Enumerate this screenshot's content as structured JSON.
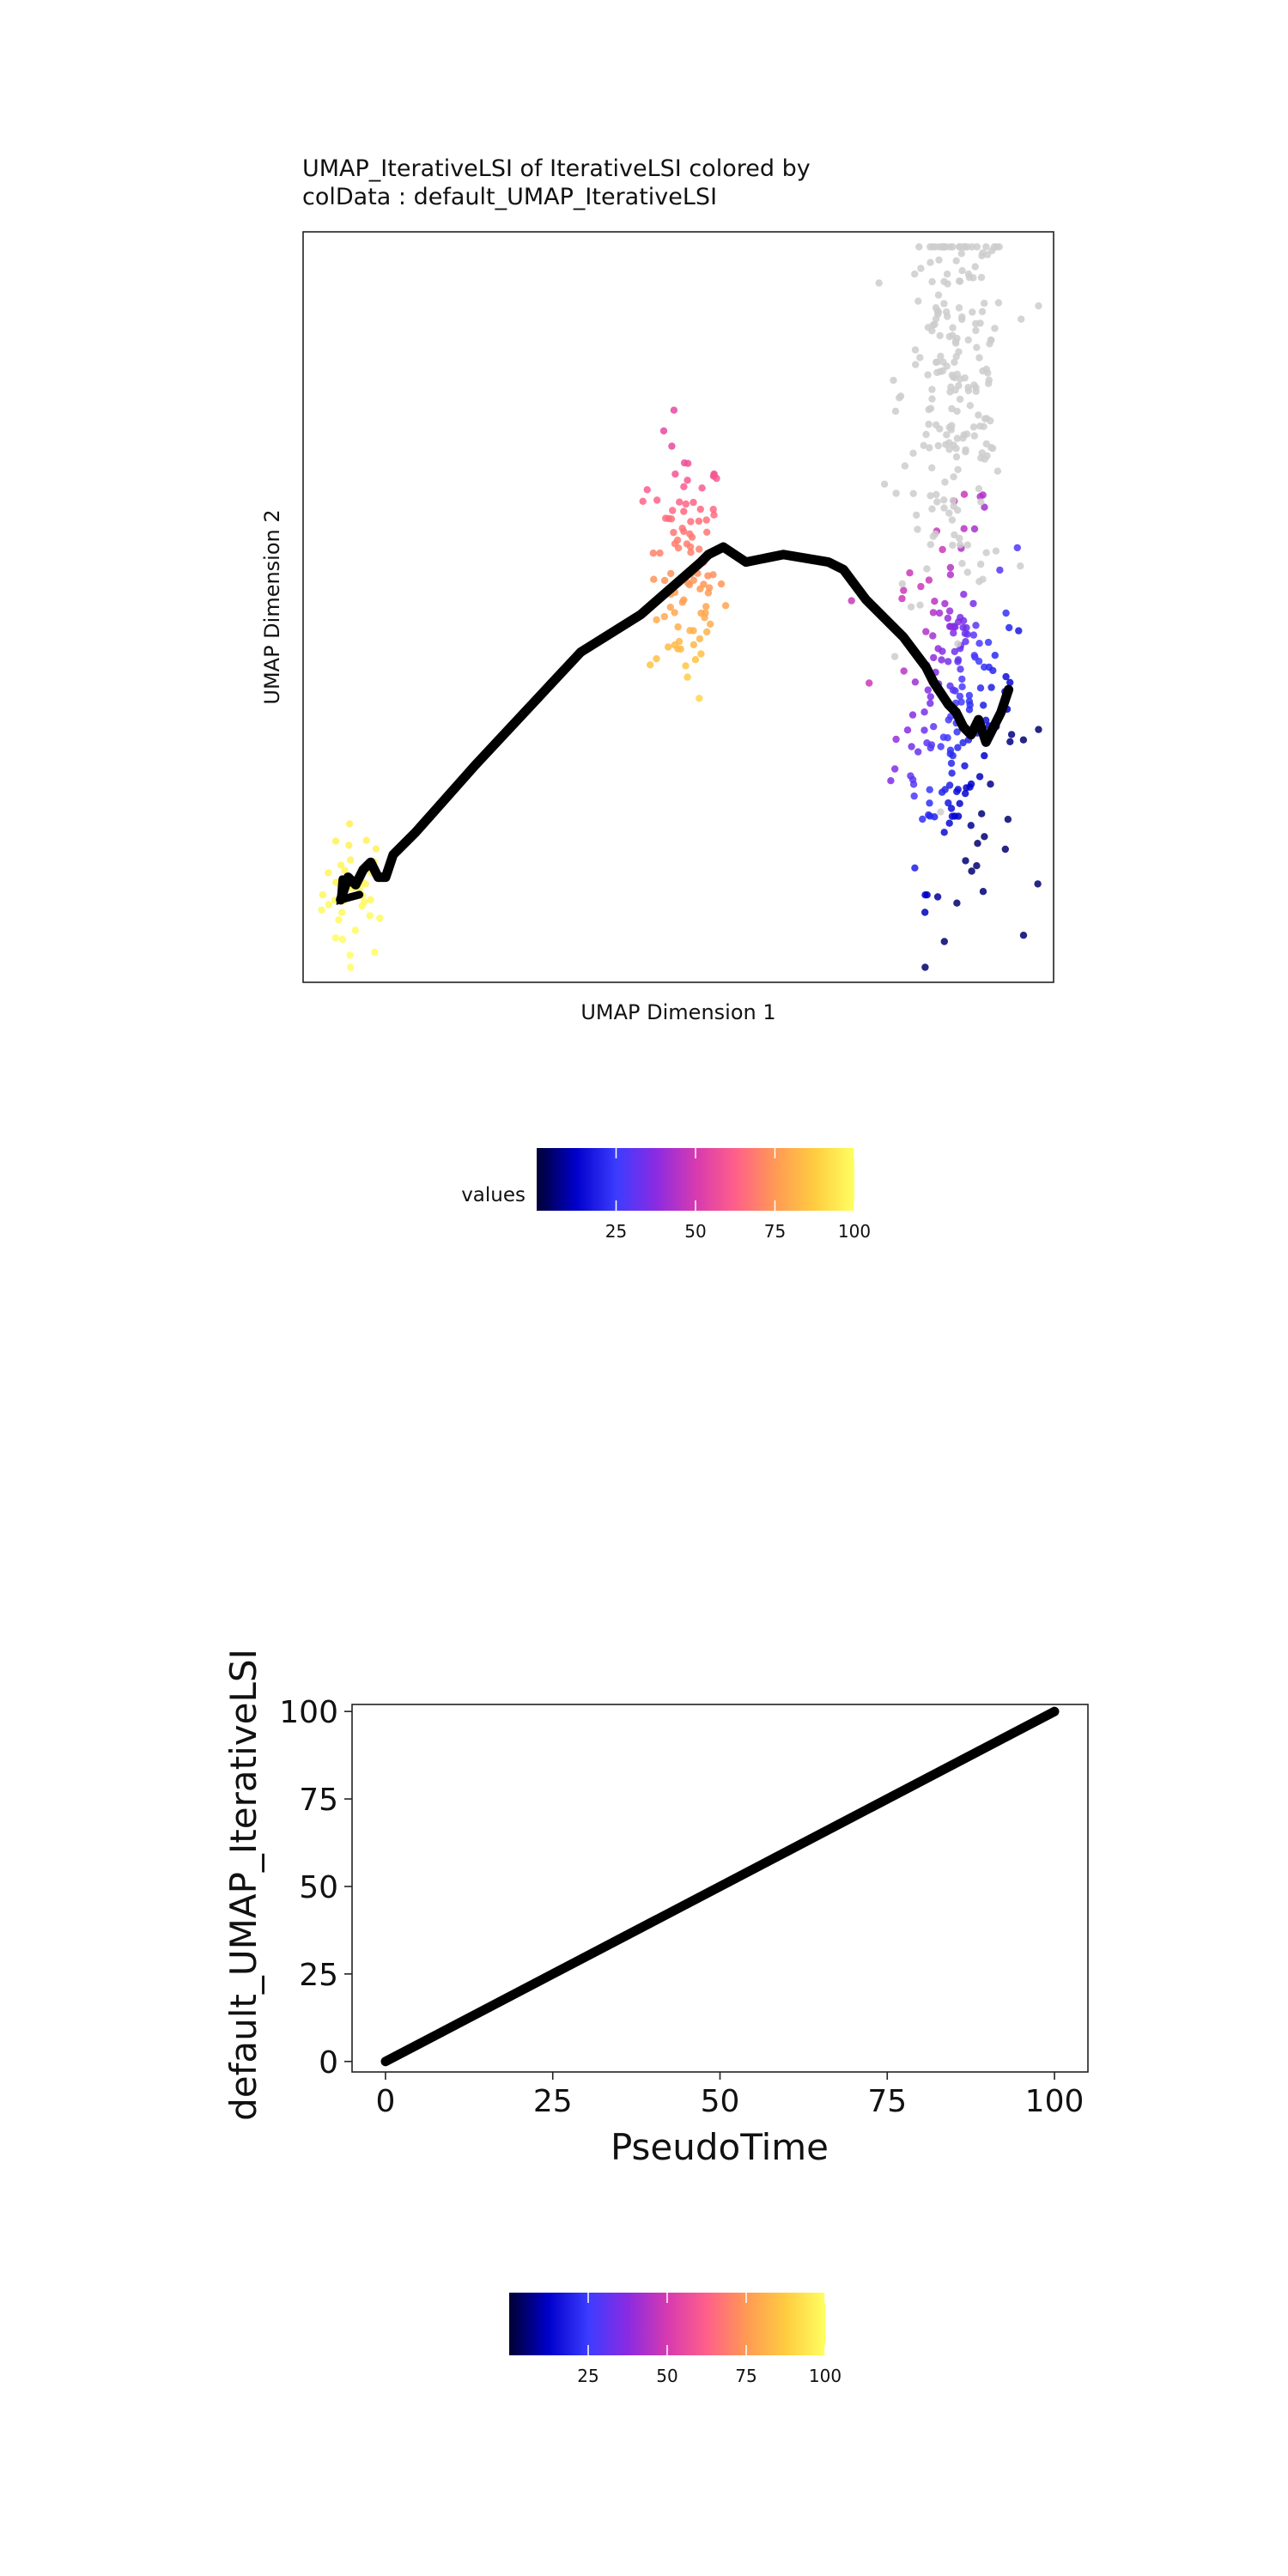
{
  "chart_data": [
    {
      "type": "scatter",
      "title_line1": "UMAP_IterativeLSI of IterativeLSI  colored by",
      "title_line2": "colData :  default_UMAP_IterativeLSI",
      "xlabel": "UMAP Dimension 1",
      "ylabel": "UMAP Dimension 2",
      "xlim": [
        0,
        100
      ],
      "ylim": [
        0,
        100
      ],
      "grid": false,
      "legend": {
        "position": "bottom",
        "label": "values",
        "ticks": [
          25,
          50,
          75,
          100
        ],
        "range": [
          0,
          100
        ],
        "colors": [
          "#000033",
          "#0000cc",
          "#3c3cff",
          "#8a2be2",
          "#d63ab0",
          "#ff5f8a",
          "#ff9955",
          "#ffcc40",
          "#ffff60"
        ]
      },
      "na_color": "#cccccc",
      "clusters": [
        {
          "cx": 7,
          "cy": 12,
          "sx": 2.2,
          "sy": 4.5,
          "n": 40,
          "vmin": 96,
          "vmax": 100
        },
        {
          "cx": 51,
          "cy": 55,
          "sx": 2.5,
          "sy": 8.5,
          "n": 95,
          "vmin": 55,
          "vmax": 90
        },
        {
          "cx": 87,
          "cy": 37,
          "sx": 4,
          "sy": 12,
          "n": 190,
          "vmin": 5,
          "vmax": 48
        },
        {
          "cx": 87,
          "cy": 79,
          "sx": 3.6,
          "sy": 14,
          "n": 220,
          "vmin": null,
          "vmax": null
        }
      ],
      "trajectory": {
        "x": [
          5,
          6,
          7,
          8,
          9,
          10,
          11,
          12,
          15,
          23,
          37,
          45,
          53,
          54,
          56,
          59,
          64,
          70,
          72,
          75,
          80,
          83,
          84,
          86,
          87,
          88,
          89,
          90,
          91,
          92,
          93,
          94
        ],
        "y": [
          11,
          14,
          13,
          15,
          16,
          14,
          14,
          17,
          20,
          29,
          44,
          49,
          56,
          57,
          58,
          56,
          57,
          56,
          55,
          51,
          46,
          42,
          40,
          37,
          36,
          34,
          33,
          35,
          32,
          34,
          36,
          39
        ],
        "color": "#000000"
      }
    },
    {
      "type": "line",
      "xlabel": "PseudoTime",
      "ylabel": "default_UMAP_IterativeLSI",
      "x": [
        0,
        100
      ],
      "y": [
        0,
        100
      ],
      "xlim": [
        -5,
        105
      ],
      "ylim": [
        -3,
        102
      ],
      "xticks": [
        0,
        25,
        50,
        75,
        100
      ],
      "yticks": [
        0,
        25,
        50,
        75,
        100
      ],
      "line_color": "#000000",
      "legend": {
        "position": "bottom",
        "ticks": [
          25,
          50,
          75,
          100
        ],
        "range": [
          0,
          100
        ],
        "colors": [
          "#000033",
          "#0000cc",
          "#3c3cff",
          "#8a2be2",
          "#d63ab0",
          "#ff5f8a",
          "#ff9955",
          "#ffcc40",
          "#ffff60"
        ]
      }
    }
  ]
}
